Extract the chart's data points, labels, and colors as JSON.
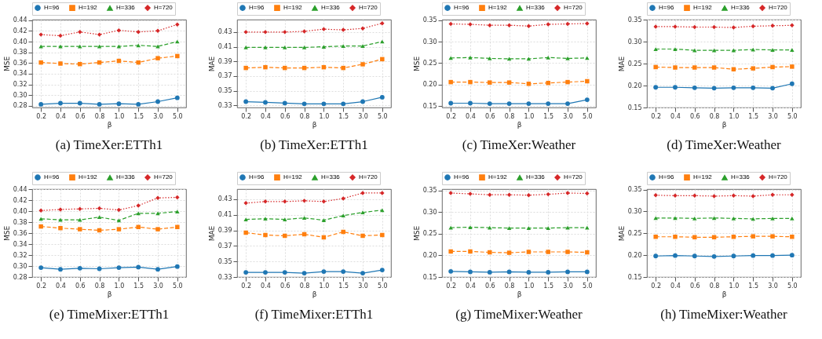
{
  "chart_data": [
    {
      "type": "line",
      "title": "(a) TimeXer:ETTh1",
      "xlabel": "β",
      "ylabel": "MSE",
      "grid": true,
      "legend": "top",
      "categories": [
        "0.2",
        "0.4",
        "0.6",
        "0.8",
        "1.0",
        "1.5",
        "3.0",
        "5.0"
      ],
      "ylim": [
        0.277,
        0.441
      ],
      "yticks": [
        0.28,
        {
          "value": 0.3,
          "label": "0.30"
        },
        0.32,
        0.34,
        0.36,
        0.38,
        {
          "value": 0.4,
          "label": "0.40"
        },
        0.42,
        0.44
      ],
      "series": [
        {
          "name": "H=96",
          "color": "#1f77b4",
          "marker": "circle",
          "line_style": "solid",
          "values": [
            0.283,
            0.285,
            0.285,
            0.283,
            0.284,
            0.283,
            0.288,
            0.295
          ]
        },
        {
          "name": "H=192",
          "color": "#ff7f0e",
          "marker": "square",
          "line_style": "dashed",
          "values": [
            0.361,
            0.359,
            0.358,
            0.361,
            0.364,
            0.361,
            0.369,
            0.373
          ]
        },
        {
          "name": "H=336",
          "color": "#2ca02c",
          "marker": "triangle",
          "line_style": "dashed",
          "values": [
            0.391,
            0.391,
            0.391,
            0.391,
            0.391,
            0.393,
            0.391,
            0.4
          ]
        },
        {
          "name": "H=720",
          "color": "#d62728",
          "marker": "diamond",
          "line_style": "dotted",
          "values": [
            0.413,
            0.411,
            0.418,
            0.413,
            0.421,
            0.418,
            0.42,
            0.432
          ]
        }
      ]
    },
    {
      "type": "line",
      "title": "(b) TimeXer:ETTh1",
      "xlabel": "β",
      "ylabel": "MAE",
      "grid": true,
      "legend": "top",
      "categories": [
        "0.2",
        "0.4",
        "0.6",
        "0.8",
        "1.0",
        "1.5",
        "3.0",
        "5.0"
      ],
      "ylim": [
        0.327,
        0.447
      ],
      "yticks": [
        0.33,
        0.35,
        0.37,
        0.39,
        0.41,
        0.43
      ],
      "series": [
        {
          "name": "H=96",
          "color": "#1f77b4",
          "marker": "circle",
          "line_style": "solid",
          "values": [
            0.335,
            0.334,
            0.333,
            0.332,
            0.332,
            0.332,
            0.335,
            0.341
          ]
        },
        {
          "name": "H=192",
          "color": "#ff7f0e",
          "marker": "square",
          "line_style": "dashed",
          "values": [
            0.381,
            0.382,
            0.381,
            0.381,
            0.382,
            0.381,
            0.386,
            0.393
          ]
        },
        {
          "name": "H=336",
          "color": "#2ca02c",
          "marker": "triangle",
          "line_style": "dashed",
          "values": [
            0.409,
            0.409,
            0.409,
            0.409,
            0.41,
            0.411,
            0.411,
            0.417
          ]
        },
        {
          "name": "H=720",
          "color": "#d62728",
          "marker": "diamond",
          "line_style": "dotted",
          "values": [
            0.43,
            0.43,
            0.43,
            0.431,
            0.434,
            0.433,
            0.435,
            0.442
          ]
        }
      ]
    },
    {
      "type": "line",
      "title": "(c) TimeXer:Weather",
      "xlabel": "β",
      "ylabel": "MSE",
      "grid": true,
      "legend": "top",
      "categories": [
        "0.2",
        "0.4",
        "0.6",
        "0.8",
        "1.0",
        "1.5",
        "3.0",
        "5.0"
      ],
      "ylim": [
        0.147,
        0.351
      ],
      "yticks": [
        0.15,
        {
          "value": 0.2,
          "label": "0.20"
        },
        0.25,
        {
          "value": 0.3,
          "label": "0.30"
        },
        0.35
      ],
      "series": [
        {
          "name": "H=96",
          "color": "#1f77b4",
          "marker": "circle",
          "line_style": "solid",
          "values": [
            0.157,
            0.157,
            0.156,
            0.156,
            0.156,
            0.156,
            0.156,
            0.165
          ]
        },
        {
          "name": "H=192",
          "color": "#ff7f0e",
          "marker": "square",
          "line_style": "dashed",
          "values": [
            0.206,
            0.206,
            0.205,
            0.205,
            0.202,
            0.204,
            0.206,
            0.208
          ]
        },
        {
          "name": "H=336",
          "color": "#2ca02c",
          "marker": "triangle",
          "line_style": "dashed",
          "values": [
            0.262,
            0.263,
            0.261,
            0.26,
            0.26,
            0.263,
            0.261,
            0.262
          ]
        },
        {
          "name": "H=720",
          "color": "#d62728",
          "marker": "diamond",
          "line_style": "dotted",
          "values": [
            0.341,
            0.34,
            0.338,
            0.338,
            0.336,
            0.34,
            0.341,
            0.342
          ]
        }
      ]
    },
    {
      "type": "line",
      "title": "(d) TimeXer:Weather",
      "xlabel": "β",
      "ylabel": "MAE",
      "grid": true,
      "legend": "top",
      "categories": [
        "0.2",
        "0.4",
        "0.6",
        "0.8",
        "1.0",
        "1.5",
        "3.0",
        "5.0"
      ],
      "ylim": [
        0.15,
        0.35
      ],
      "yticks": [
        0.15,
        {
          "value": 0.2,
          "label": "0.20"
        },
        0.25,
        {
          "value": 0.3,
          "label": "0.30"
        },
        0.35
      ],
      "series": [
        {
          "name": "H=96",
          "color": "#1f77b4",
          "marker": "circle",
          "line_style": "solid",
          "values": [
            0.196,
            0.196,
            0.195,
            0.194,
            0.195,
            0.195,
            0.194,
            0.204
          ]
        },
        {
          "name": "H=192",
          "color": "#ff7f0e",
          "marker": "square",
          "line_style": "dashed",
          "values": [
            0.242,
            0.241,
            0.241,
            0.241,
            0.237,
            0.239,
            0.242,
            0.243
          ]
        },
        {
          "name": "H=336",
          "color": "#2ca02c",
          "marker": "triangle",
          "line_style": "dashed",
          "values": [
            0.283,
            0.283,
            0.28,
            0.28,
            0.28,
            0.282,
            0.281,
            0.281
          ]
        },
        {
          "name": "H=720",
          "color": "#d62728",
          "marker": "diamond",
          "line_style": "dotted",
          "values": [
            0.334,
            0.334,
            0.333,
            0.333,
            0.332,
            0.335,
            0.336,
            0.337
          ]
        }
      ]
    },
    {
      "type": "line",
      "title": "(e) TimeMixer:ETTh1",
      "xlabel": "β",
      "ylabel": "MSE",
      "grid": true,
      "legend": "top",
      "categories": [
        "0.2",
        "0.4",
        "0.6",
        "0.8",
        "1.0",
        "1.5",
        "3.0",
        "5.0"
      ],
      "ylim": [
        0.28,
        0.44
      ],
      "yticks": [
        0.28,
        {
          "value": 0.3,
          "label": "0.30"
        },
        0.32,
        0.34,
        0.36,
        0.38,
        {
          "value": 0.4,
          "label": "0.40"
        },
        0.42,
        0.44
      ],
      "series": [
        {
          "name": "H=96",
          "color": "#1f77b4",
          "marker": "circle",
          "line_style": "solid",
          "values": [
            0.297,
            0.294,
            0.296,
            0.295,
            0.297,
            0.298,
            0.294,
            0.299
          ]
        },
        {
          "name": "H=192",
          "color": "#ff7f0e",
          "marker": "square",
          "line_style": "dashed",
          "values": [
            0.372,
            0.369,
            0.367,
            0.365,
            0.367,
            0.371,
            0.367,
            0.371
          ]
        },
        {
          "name": "H=336",
          "color": "#2ca02c",
          "marker": "triangle",
          "line_style": "dashed",
          "values": [
            0.386,
            0.384,
            0.384,
            0.389,
            0.383,
            0.396,
            0.396,
            0.399
          ]
        },
        {
          "name": "H=720",
          "color": "#d62728",
          "marker": "diamond",
          "line_style": "dotted",
          "values": [
            0.401,
            0.403,
            0.404,
            0.405,
            0.402,
            0.41,
            0.424,
            0.425
          ]
        }
      ]
    },
    {
      "type": "line",
      "title": "(f) TimeMixer:ETTh1",
      "xlabel": "β",
      "ylabel": "MAE",
      "grid": true,
      "legend": "top",
      "categories": [
        "0.2",
        "0.4",
        "0.6",
        "0.8",
        "1.0",
        "1.5",
        "3.0",
        "5.0"
      ],
      "ylim": [
        0.33,
        0.443
      ],
      "yticks": [
        0.33,
        0.35,
        0.37,
        0.39,
        0.41,
        0.43
      ],
      "series": [
        {
          "name": "H=96",
          "color": "#1f77b4",
          "marker": "circle",
          "line_style": "solid",
          "values": [
            0.336,
            0.336,
            0.336,
            0.335,
            0.337,
            0.337,
            0.335,
            0.339
          ]
        },
        {
          "name": "H=192",
          "color": "#ff7f0e",
          "marker": "square",
          "line_style": "dashed",
          "values": [
            0.387,
            0.384,
            0.383,
            0.385,
            0.381,
            0.388,
            0.383,
            0.384
          ]
        },
        {
          "name": "H=336",
          "color": "#2ca02c",
          "marker": "triangle",
          "line_style": "dashed",
          "values": [
            0.404,
            0.405,
            0.404,
            0.406,
            0.403,
            0.409,
            0.413,
            0.416
          ]
        },
        {
          "name": "H=720",
          "color": "#d62728",
          "marker": "diamond",
          "line_style": "dotted",
          "values": [
            0.425,
            0.427,
            0.427,
            0.428,
            0.427,
            0.431,
            0.438,
            0.438
          ]
        }
      ]
    },
    {
      "type": "line",
      "title": "(g) TimeMixer:Weather",
      "xlabel": "β",
      "ylabel": "MSE",
      "grid": true,
      "legend": "top",
      "categories": [
        "0.2",
        "0.4",
        "0.6",
        "0.8",
        "1.0",
        "1.5",
        "3.0",
        "5.0"
      ],
      "ylim": [
        0.15,
        0.353
      ],
      "yticks": [
        0.15,
        {
          "value": 0.2,
          "label": "0.20"
        },
        0.25,
        {
          "value": 0.3,
          "label": "0.30"
        },
        0.35
      ],
      "series": [
        {
          "name": "H=96",
          "color": "#1f77b4",
          "marker": "circle",
          "line_style": "solid",
          "values": [
            0.163,
            0.162,
            0.161,
            0.162,
            0.161,
            0.161,
            0.162,
            0.162
          ]
        },
        {
          "name": "H=192",
          "color": "#ff7f0e",
          "marker": "square",
          "line_style": "dashed",
          "values": [
            0.209,
            0.209,
            0.207,
            0.206,
            0.208,
            0.208,
            0.208,
            0.207
          ]
        },
        {
          "name": "H=336",
          "color": "#2ca02c",
          "marker": "triangle",
          "line_style": "dashed",
          "values": [
            0.264,
            0.265,
            0.264,
            0.263,
            0.263,
            0.263,
            0.264,
            0.264
          ]
        },
        {
          "name": "H=720",
          "color": "#d62728",
          "marker": "diamond",
          "line_style": "dotted",
          "values": [
            0.344,
            0.342,
            0.34,
            0.34,
            0.339,
            0.341,
            0.344,
            0.343
          ]
        }
      ]
    },
    {
      "type": "line",
      "title": "(h) TimeMixer:Weather",
      "xlabel": "β",
      "ylabel": "MAE",
      "grid": true,
      "legend": "top",
      "categories": [
        "0.2",
        "0.4",
        "0.6",
        "0.8",
        "1.0",
        "1.5",
        "3.0",
        "5.0"
      ],
      "ylim": [
        0.15,
        0.351
      ],
      "yticks": [
        0.15,
        {
          "value": 0.2,
          "label": "0.20"
        },
        0.25,
        {
          "value": 0.3,
          "label": "0.30"
        },
        0.35
      ],
      "series": [
        {
          "name": "H=96",
          "color": "#1f77b4",
          "marker": "circle",
          "line_style": "solid",
          "values": [
            0.198,
            0.199,
            0.198,
            0.197,
            0.198,
            0.199,
            0.199,
            0.2
          ]
        },
        {
          "name": "H=192",
          "color": "#ff7f0e",
          "marker": "square",
          "line_style": "dashed",
          "values": [
            0.242,
            0.242,
            0.241,
            0.241,
            0.242,
            0.243,
            0.243,
            0.242
          ]
        },
        {
          "name": "H=336",
          "color": "#2ca02c",
          "marker": "triangle",
          "line_style": "dashed",
          "values": [
            0.285,
            0.285,
            0.284,
            0.285,
            0.284,
            0.283,
            0.284,
            0.284
          ]
        },
        {
          "name": "H=720",
          "color": "#d62728",
          "marker": "diamond",
          "line_style": "dotted",
          "values": [
            0.337,
            0.336,
            0.336,
            0.335,
            0.336,
            0.335,
            0.338,
            0.338
          ]
        }
      ]
    }
  ]
}
